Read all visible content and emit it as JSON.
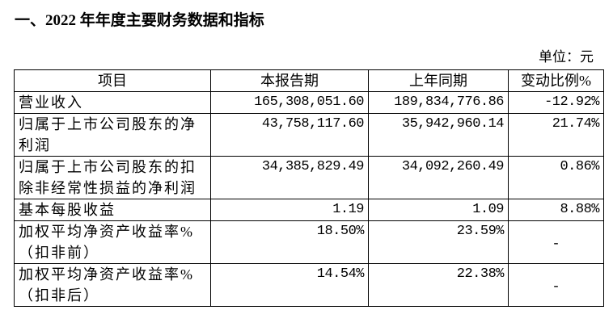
{
  "title": "一、2022 年年度主要财务数据和指标",
  "unit": "单位：元",
  "table": {
    "headers": [
      "项目",
      "本报告期",
      "上年同期",
      "变动比例%"
    ],
    "rows": [
      {
        "item": "营业收入",
        "current": "165,308,051.60",
        "prior": "189,834,776.86",
        "change": "-12.92%"
      },
      {
        "item": "归属于上市公司股东的净利润",
        "current": "43,758,117.60",
        "prior": "35,942,960.14",
        "change": "21.74%"
      },
      {
        "item": "归属于上市公司股东的扣除非经常性损益的净利润",
        "current": "34,385,829.49",
        "prior": "34,092,260.49",
        "change": "0.86%"
      },
      {
        "item": "基本每股收益",
        "current": "1.19",
        "prior": "1.09",
        "change": "8.88%"
      },
      {
        "item": "加权平均净资产收益率%（扣非前）",
        "current": "18.50%",
        "prior": "23.59%",
        "change": "-"
      },
      {
        "item": "加权平均净资产收益率%（扣非后）",
        "current": "14.54%",
        "prior": "22.38%",
        "change": "-"
      }
    ]
  }
}
